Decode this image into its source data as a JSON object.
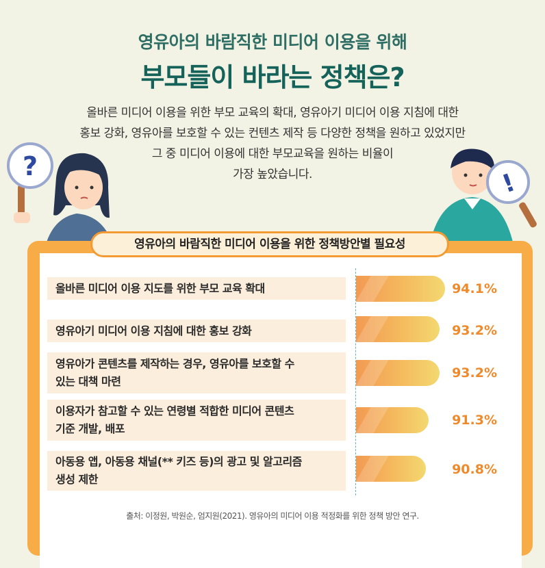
{
  "header": {
    "subtitle": "영유아의 바람직한 미디어 이용을 위해",
    "title": "부모들이 바라는 정책은?"
  },
  "intro": [
    "올바른 미디어 이용을 위한 부모 교육의 확대, 영유아기 미디어 이용 지침에 대한",
    "홍보 강화, 영유아를 보호할 수 있는 컨텐츠 제작 등 다양한 정책을 원하고 있었지만",
    "그 중 미디어 이용에 대한 부모교육을 원하는 비율이",
    "가장 높았습니다."
  ],
  "illustration": {
    "left_sign": "?",
    "right_sign": "!"
  },
  "chart_data": {
    "type": "bar",
    "orientation": "horizontal",
    "title": "영유아의 바람직한 미디어 이용을 위한 정책방안별 필요성",
    "categories": [
      "올바른 미디어 이용 지도를 위한 부모 교육 확대",
      "영유아기 미디어 이용 지침에 대한 홍보 강화",
      "영유아가 콘텐츠를 제작하는 경우, 영유아를 보호할 수 있는 대책 마련",
      "이용자가 참고할 수 있는 연령별 적합한 미디어 콘텐츠 기준 개발, 배포",
      "아동용 앱, 아동용 채널(** 키즈 등)의 광고 및 알고리즘 생성 제한"
    ],
    "label_lines": [
      [
        "올바른 미디어 이용 지도를 위한 부모 교육 확대"
      ],
      [
        "영유아기 미디어 이용 지침에 대한 홍보 강화"
      ],
      [
        "영유아가 콘텐츠를 제작하는 경우, 영유아를 보호할 수",
        "있는 대책 마련"
      ],
      [
        "이용자가 참고할 수 있는 연령별 적합한 미디어 콘텐츠",
        "기준 개발, 배포"
      ],
      [
        "아동용 앱, 아동용 채널(** 키즈 등)의 광고 및 알고리즘",
        "생성 제한"
      ]
    ],
    "values": [
      94.1,
      93.2,
      93.2,
      91.3,
      90.8
    ],
    "value_labels": [
      "94.1%",
      "93.2%",
      "93.2%",
      "91.3%",
      "90.8%"
    ],
    "unit": "%",
    "bar_colors": [
      "#f29a52",
      "#f3d870"
    ]
  },
  "source": "출처: 이정원, 박원순, 엄지원(2021). 영유아의 미디어 이용 적정화를 위한 정책 방안 연구."
}
